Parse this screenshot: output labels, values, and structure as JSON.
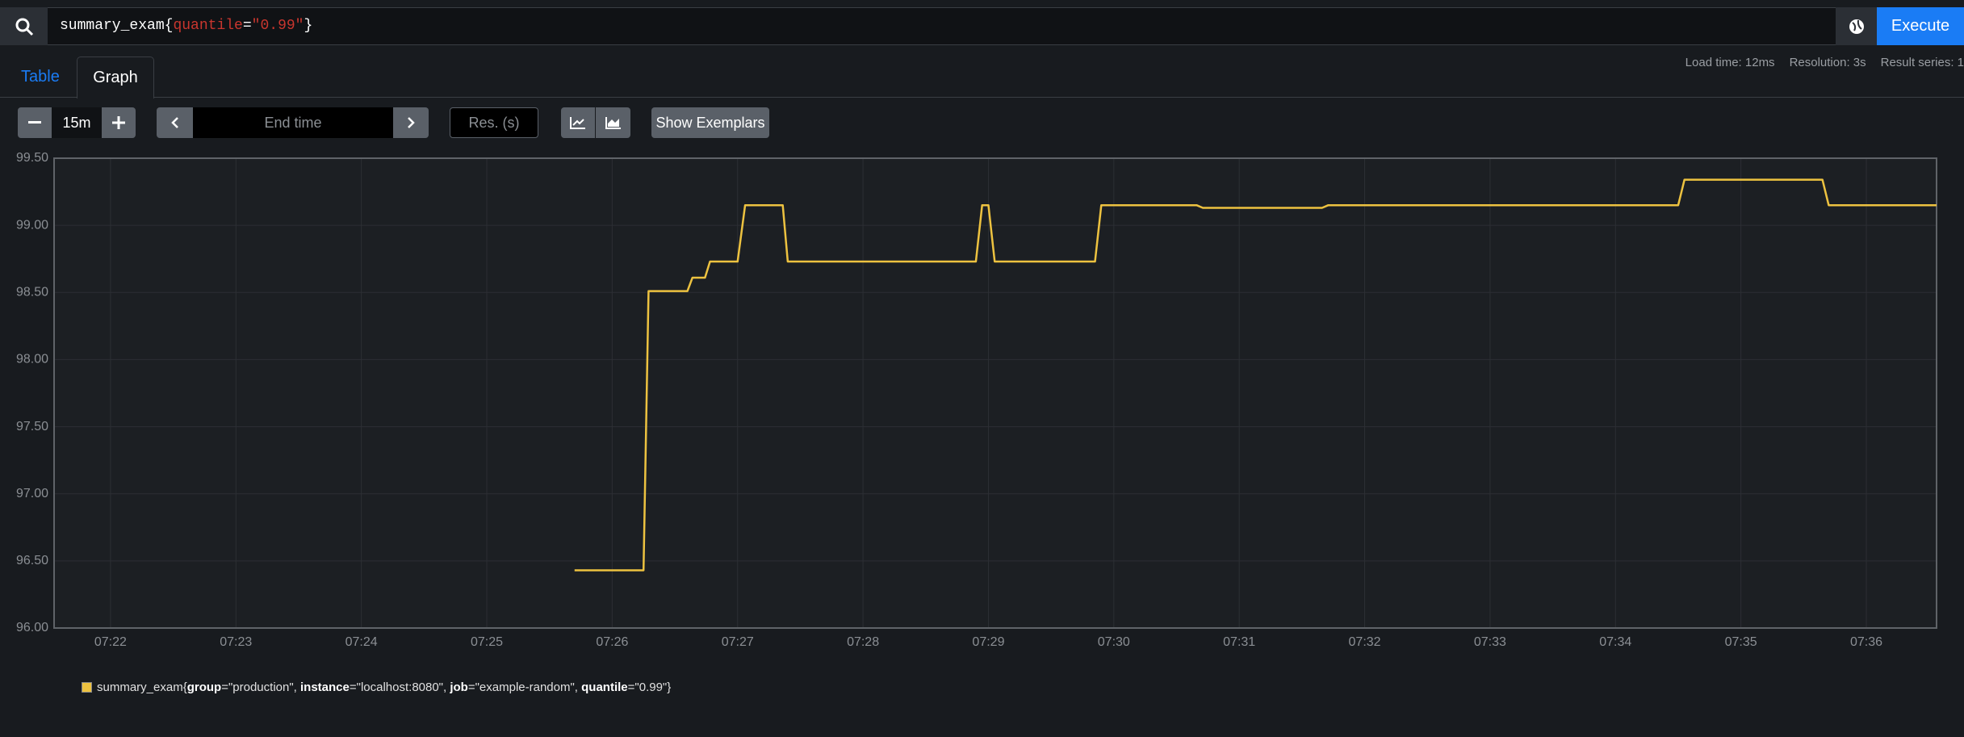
{
  "query": {
    "text": "summary_exam{quantile=\"0.99\"}",
    "button": "Execute"
  },
  "tabs": [
    "Table",
    "Graph"
  ],
  "stats": [
    "Load time: 12ms",
    "Resolution: 3s",
    "Result series: 1"
  ],
  "controls": {
    "range": "15m",
    "end_time": "End time",
    "resolution": "Res. (s)",
    "exemplars": "Show Exemplars"
  },
  "chart_data": {
    "type": "line",
    "x": [
      445.7,
      446.25,
      446.29,
      446.6,
      446.64,
      446.74,
      446.78,
      447.0,
      447.06,
      447.36,
      447.4,
      448.9,
      448.95,
      449.0,
      449.05,
      449.85,
      449.9,
      450.66,
      450.71,
      451.66,
      451.71,
      454.5,
      454.55,
      455.65,
      455.7,
      456.56
    ],
    "series": [
      {
        "name": "summary_exam{group=\"production\", instance=\"localhost:8080\", job=\"example-random\", quantile=\"0.99\"}",
        "color": "#edc240",
        "values": [
          96.43,
          96.43,
          98.51,
          98.51,
          98.61,
          98.61,
          98.73,
          98.73,
          99.15,
          99.15,
          98.73,
          98.73,
          99.15,
          99.15,
          98.73,
          98.73,
          99.15,
          99.15,
          99.13,
          99.13,
          99.15,
          99.15,
          99.34,
          99.34,
          99.15,
          99.15
        ]
      }
    ],
    "xlim": [
      441.55,
      456.56
    ],
    "xticks": [
      {
        "value": 442,
        "label": "07:22"
      },
      {
        "value": 443,
        "label": "07:23"
      },
      {
        "value": 444,
        "label": "07:24"
      },
      {
        "value": 445,
        "label": "07:25"
      },
      {
        "value": 446,
        "label": "07:26"
      },
      {
        "value": 447,
        "label": "07:27"
      },
      {
        "value": 448,
        "label": "07:28"
      },
      {
        "value": 449,
        "label": "07:29"
      },
      {
        "value": 450,
        "label": "07:30"
      },
      {
        "value": 451,
        "label": "07:31"
      },
      {
        "value": 452,
        "label": "07:32"
      },
      {
        "value": 453,
        "label": "07:33"
      },
      {
        "value": 454,
        "label": "07:34"
      },
      {
        "value": 455,
        "label": "07:35"
      },
      {
        "value": 456,
        "label": "07:36"
      }
    ],
    "ylim": [
      96,
      99.5
    ],
    "yticks": [
      {
        "value": 96,
        "label": "96.00"
      },
      {
        "value": 96.5,
        "label": "96.50"
      },
      {
        "value": 97,
        "label": "97.00"
      },
      {
        "value": 97.5,
        "label": "97.50"
      },
      {
        "value": 98,
        "label": "98.00"
      },
      {
        "value": 98.5,
        "label": "98.50"
      },
      {
        "value": 99,
        "label": "99.00"
      },
      {
        "value": 99.5,
        "label": "99.50"
      }
    ],
    "grid": true
  }
}
